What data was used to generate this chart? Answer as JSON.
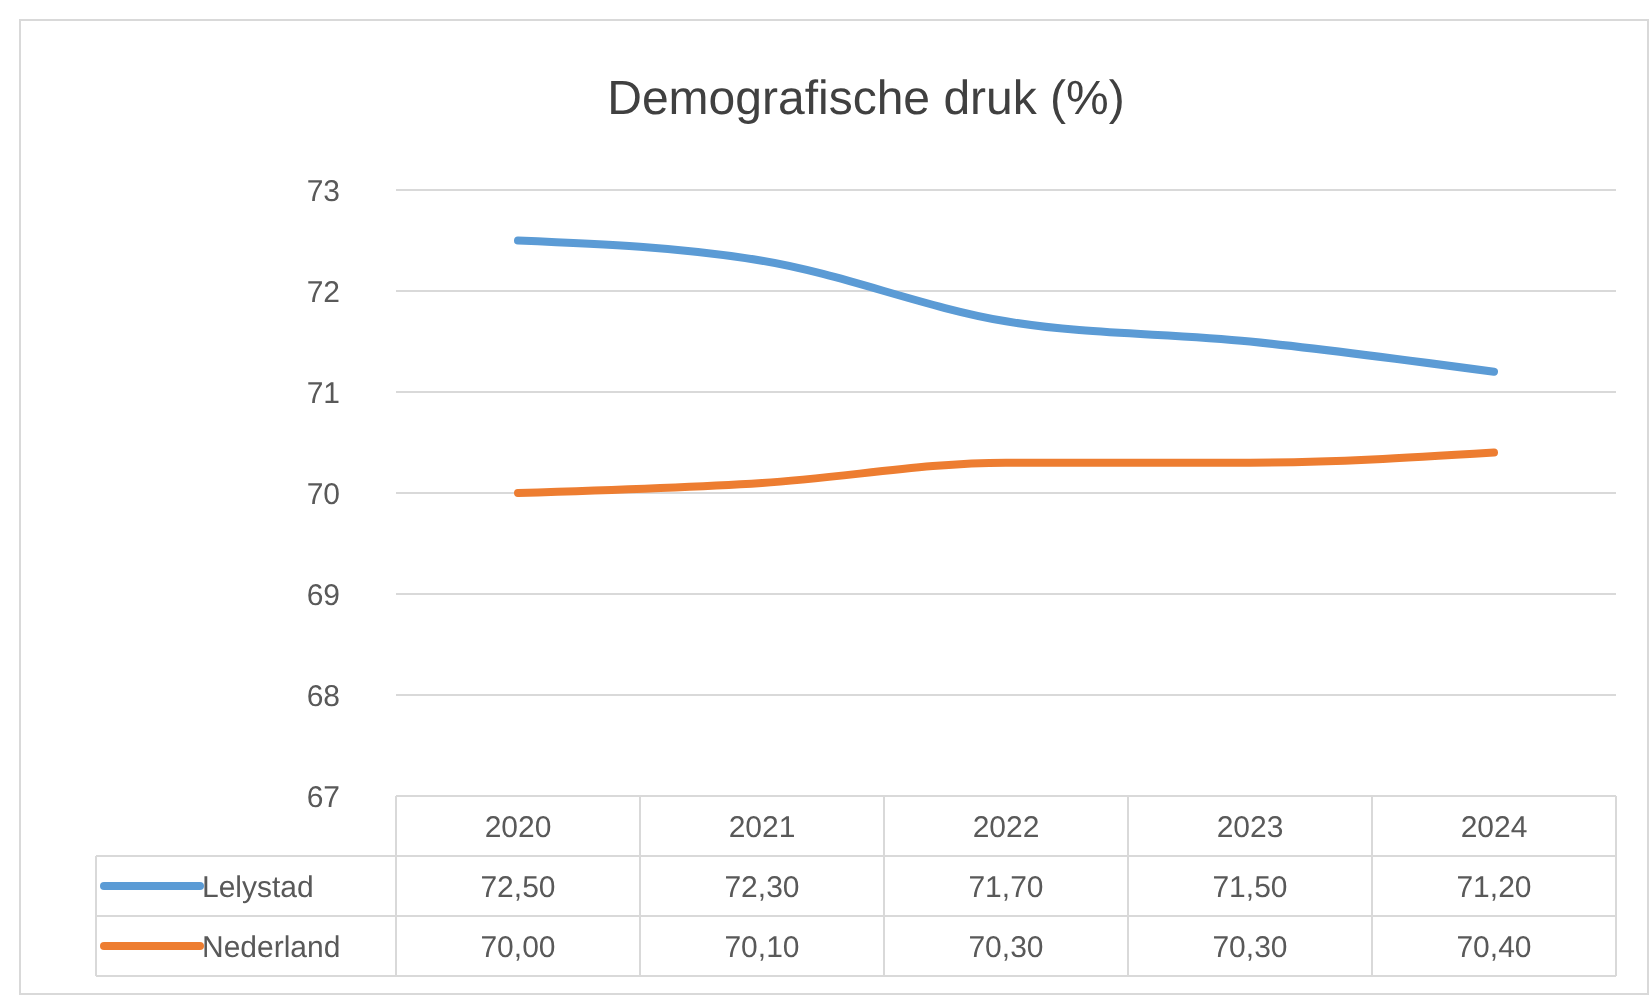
{
  "chart_data": {
    "type": "line",
    "title": "Demografische druk (%)",
    "categories": [
      "2020",
      "2021",
      "2022",
      "2023",
      "2024"
    ],
    "series": [
      {
        "name": "Lelystad",
        "color": "#5b9bd5",
        "values": [
          72.5,
          72.3,
          71.7,
          71.5,
          71.2
        ],
        "value_labels": [
          "72,50",
          "72,30",
          "71,70",
          "71,50",
          "71,20"
        ]
      },
      {
        "name": "Nederland",
        "color": "#ed7d31",
        "values": [
          70.0,
          70.1,
          70.3,
          70.3,
          70.4
        ],
        "value_labels": [
          "70,00",
          "70,10",
          "70,30",
          "70,30",
          "70,40"
        ]
      }
    ],
    "ylim": [
      67,
      73
    ],
    "yticks": [
      67,
      68,
      69,
      70,
      71,
      72,
      73
    ],
    "grid": "y",
    "legend": "bottom",
    "marker": "none",
    "line_style": "solid"
  }
}
